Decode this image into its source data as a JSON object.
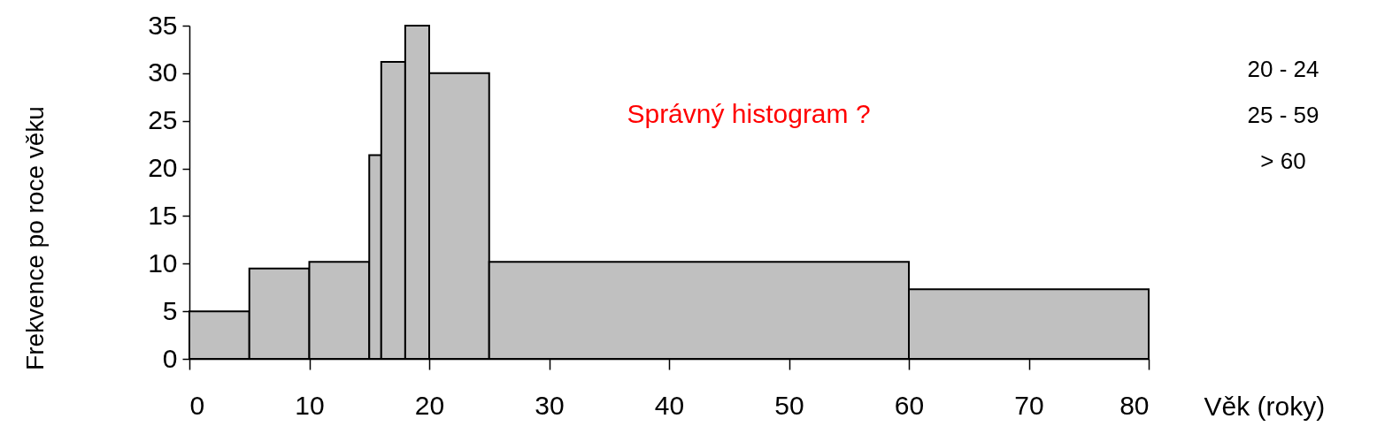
{
  "chart_data": {
    "type": "histogram",
    "xlabel": "Věk (roky)",
    "ylabel": "Frekvence po roce věku",
    "bins": [
      0,
      5,
      10,
      15,
      16,
      18,
      20,
      25,
      60,
      80
    ],
    "values": [
      5,
      9.5,
      10.2,
      21.4,
      31.2,
      35,
      30,
      10.2,
      7.3
    ],
    "color": "#c0c0c0",
    "xlim": [
      0,
      80
    ],
    "xticks": [
      0,
      10,
      20,
      30,
      40,
      50,
      60,
      70,
      80
    ],
    "ylim": [
      0,
      35
    ],
    "yticks": [
      0,
      5,
      10,
      15,
      20,
      25,
      30,
      35
    ],
    "grid": false,
    "annotations": [
      "Správný histogram ?",
      "20 - 24",
      "25 - 59",
      "> 60"
    ]
  }
}
